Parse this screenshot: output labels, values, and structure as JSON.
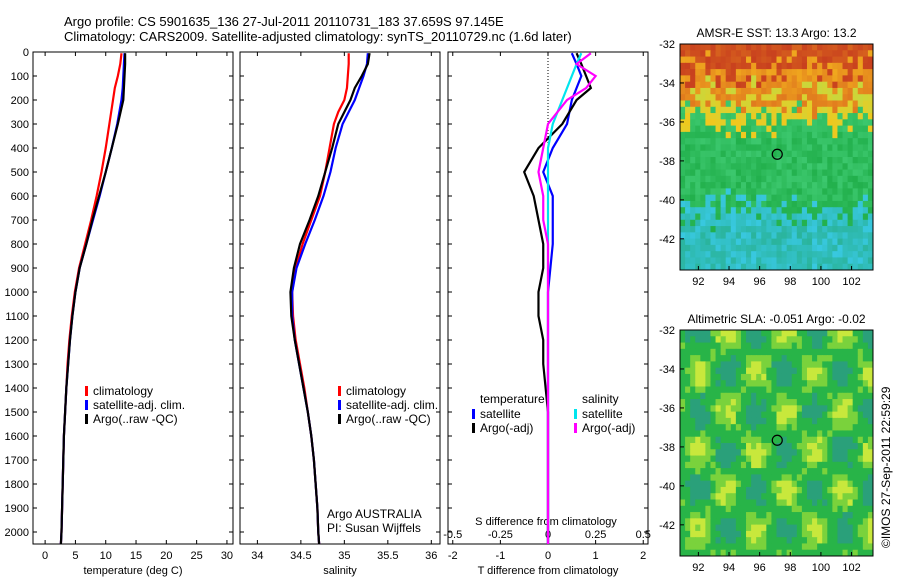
{
  "header": {
    "line1": "Argo profile: CS 5901635_136 27-Jul-2011 20110731_183 37.659S 97.145E",
    "line2": "Climatology: CARS2009. Satellite-adjusted climatology: synTS_20110729.nc (1.6d later)"
  },
  "credit": "Argo AUSTRALIA",
  "pi": "PI: Susan Wijffels",
  "watermark": "©IMOS 27-Sep-2011 22:59:29",
  "colors": {
    "climatology": "#ff0000",
    "satellite": "#0000ff",
    "argo": "#000000",
    "salinity_satellite": "#00e5ee",
    "salinity_argo": "#ff00ff",
    "sst_warm": "#d2691e",
    "sst_cool": "#22b14c"
  },
  "chart_data": [
    {
      "type": "line",
      "id": "temperature",
      "xlabel": "temperature (deg C)",
      "ylabel": "",
      "xlim": [
        -2,
        31
      ],
      "ylim": [
        2050,
        0
      ],
      "xticks": [
        "0",
        "5",
        "10",
        "15",
        "20",
        "25",
        "30"
      ],
      "yticks": [
        "0",
        "100",
        "200",
        "300",
        "400",
        "500",
        "600",
        "700",
        "800",
        "900",
        "1000",
        "1100",
        "1200",
        "1300",
        "1400",
        "1500",
        "1600",
        "1700",
        "1800",
        "1900",
        "2000"
      ],
      "legend": [
        "climatology",
        "satellite-adj. clim.",
        "Argo(..raw -QC)"
      ],
      "series": [
        {
          "name": "climatology",
          "depth": [
            5,
            50,
            100,
            150,
            200,
            300,
            400,
            500,
            600,
            700,
            800,
            900,
            1000,
            1100,
            1200,
            1300,
            1400,
            1500,
            1600,
            1700,
            1800,
            1900,
            2000,
            2050
          ],
          "values": [
            12.6,
            12.4,
            12.0,
            11.5,
            11.2,
            10.6,
            10.0,
            9.3,
            8.5,
            7.6,
            6.6,
            5.6,
            4.9,
            4.4,
            4.0,
            3.7,
            3.5,
            3.3,
            3.1,
            3.0,
            2.9,
            2.8,
            2.7,
            2.6
          ]
        },
        {
          "name": "satellite-adj. clim.",
          "depth": [
            5,
            50,
            100,
            150,
            200,
            300,
            400,
            500,
            600,
            700,
            800,
            900,
            1000,
            1100,
            1200,
            1300,
            1400,
            1500,
            1600,
            1700,
            1800,
            1900,
            2000,
            2050
          ],
          "values": [
            13.1,
            13.0,
            12.9,
            12.8,
            12.6,
            11.9,
            11.0,
            10.0,
            9.0,
            7.9,
            6.8,
            5.7,
            5.0,
            4.5,
            4.1,
            3.8,
            3.5,
            3.3,
            3.1,
            3.0,
            2.9,
            2.8,
            2.7,
            2.6
          ]
        },
        {
          "name": "Argo(..raw -QC)",
          "depth": [
            5,
            50,
            100,
            150,
            200,
            300,
            400,
            500,
            600,
            700,
            800,
            900,
            1000,
            1100,
            1200,
            1300,
            1400,
            1500,
            1600,
            1700,
            1800,
            1900,
            2000,
            2050
          ],
          "values": [
            13.2,
            13.2,
            13.1,
            13.0,
            12.9,
            12.0,
            11.0,
            10.0,
            8.9,
            7.8,
            6.8,
            5.7,
            5.0,
            4.5,
            4.1,
            3.8,
            3.5,
            3.3,
            3.1,
            3.0,
            2.9,
            2.8,
            2.7,
            2.6
          ]
        }
      ]
    },
    {
      "type": "line",
      "id": "salinity",
      "xlabel": "salinity",
      "xlim": [
        33.8,
        36.1
      ],
      "ylim": [
        2050,
        0
      ],
      "xticks": [
        "34",
        "34.5",
        "35",
        "35.5",
        "36"
      ],
      "legend": [
        "climatology",
        "satellite-adj. clim.",
        "Argo(..raw -QC)"
      ],
      "series": [
        {
          "name": "climatology",
          "depth": [
            5,
            50,
            100,
            150,
            200,
            250,
            300,
            400,
            500,
            600,
            700,
            800,
            900,
            1000,
            1100,
            1200,
            1300,
            1400,
            1500,
            1600,
            1700,
            1800,
            1900,
            2000,
            2050
          ],
          "values": [
            35.05,
            35.05,
            35.04,
            35.03,
            35.0,
            34.93,
            34.88,
            34.83,
            34.78,
            34.72,
            34.62,
            34.52,
            34.44,
            34.4,
            34.41,
            34.44,
            34.49,
            34.54,
            34.58,
            34.62,
            34.65,
            34.67,
            34.69,
            34.7,
            34.71
          ]
        },
        {
          "name": "satellite-adj. clim.",
          "depth": [
            5,
            50,
            100,
            150,
            200,
            250,
            300,
            400,
            500,
            600,
            700,
            800,
            900,
            1000,
            1100,
            1200,
            1300,
            1400,
            1500,
            1600,
            1700,
            1800,
            1900,
            2000,
            2050
          ],
          "values": [
            35.27,
            35.26,
            35.22,
            35.17,
            35.12,
            35.05,
            34.98,
            34.9,
            34.84,
            34.76,
            34.66,
            34.55,
            34.45,
            34.4,
            34.4,
            34.43,
            34.48,
            34.53,
            34.58,
            34.62,
            34.65,
            34.67,
            34.69,
            34.7,
            34.71
          ]
        },
        {
          "name": "Argo(..raw -QC)",
          "depth": [
            5,
            50,
            100,
            150,
            200,
            250,
            300,
            400,
            500,
            600,
            700,
            800,
            900,
            1000,
            1100,
            1200,
            1300,
            1400,
            1500,
            1600,
            1700,
            1800,
            1900,
            2000,
            2050
          ],
          "values": [
            35.29,
            35.27,
            35.2,
            35.12,
            35.07,
            35.0,
            34.93,
            34.86,
            34.78,
            34.7,
            34.6,
            34.49,
            34.42,
            34.38,
            34.39,
            34.43,
            34.48,
            34.53,
            34.58,
            34.62,
            34.65,
            34.67,
            34.69,
            34.7,
            34.71
          ]
        }
      ]
    },
    {
      "type": "line",
      "id": "difference",
      "xlabel": "T difference from climatology",
      "xlabel_top": "S difference from climatology",
      "xlim": [
        -2.1,
        2.1
      ],
      "ylim": [
        2050,
        0
      ],
      "xticks": [
        "-2",
        "-1",
        "0",
        "1",
        "2"
      ],
      "xticks_top": [
        "-0.5",
        "-0.25",
        "0",
        "0.25",
        "0.5"
      ],
      "legend_left_title": "temperature",
      "legend_right_title": "salinity",
      "legend": [
        "satellite",
        "Argo(-adj)",
        "satellite",
        "Argo(-adj)"
      ],
      "series": [
        {
          "name": "temperature satellite",
          "depth": [
            5,
            50,
            100,
            150,
            200,
            300,
            400,
            500,
            600,
            800,
            1000,
            1200,
            1500,
            2000,
            2050
          ],
          "values": [
            0.5,
            0.6,
            0.7,
            0.6,
            0.5,
            0.4,
            0.1,
            -0.1,
            0.1,
            0.1,
            0.0,
            0.0,
            0.0,
            0.0,
            0.0
          ]
        },
        {
          "name": "temperature Argo(-adj)",
          "depth": [
            5,
            50,
            100,
            150,
            200,
            300,
            400,
            500,
            600,
            700,
            800,
            900,
            1000,
            1100,
            1200,
            1300,
            1500,
            1800,
            2050
          ],
          "values": [
            0.6,
            0.7,
            0.8,
            0.9,
            0.6,
            0.3,
            -0.2,
            -0.5,
            -0.3,
            -0.2,
            -0.1,
            -0.1,
            -0.2,
            -0.2,
            -0.1,
            -0.1,
            0.0,
            0.0,
            0.0
          ]
        },
        {
          "name": "salinity satellite",
          "depth": [
            5,
            50,
            100,
            150,
            200,
            300,
            400,
            500,
            700,
            900,
            1200,
            1500,
            2050
          ],
          "values": [
            0.7,
            0.6,
            0.5,
            0.4,
            0.3,
            0.1,
            0.0,
            0.0,
            0.0,
            0.0,
            0.0,
            0.0,
            0.0
          ]
        },
        {
          "name": "salinity Argo(-adj)",
          "depth": [
            5,
            50,
            100,
            150,
            200,
            300,
            400,
            500,
            600,
            700,
            800,
            900,
            1000,
            1200,
            1500,
            2050
          ],
          "values": [
            0.9,
            0.6,
            1.0,
            0.8,
            0.4,
            0.0,
            -0.1,
            -0.2,
            -0.1,
            -0.1,
            0.0,
            0.0,
            0.0,
            0.0,
            0.0,
            0.0
          ]
        }
      ]
    },
    {
      "type": "heatmap",
      "id": "sst",
      "title": "AMSR-E SST: 13.3 Argo: 13.2",
      "xticks": [
        "92",
        "94",
        "96",
        "98",
        "100",
        "102"
      ],
      "yticks": [
        "-32",
        "-34",
        "-36",
        "-38",
        "-40",
        "-42"
      ],
      "xlim": [
        90.8,
        103.4
      ],
      "ylim": [
        -43.6,
        -32.0
      ],
      "marker": {
        "lon": 97.15,
        "lat": -37.66
      }
    },
    {
      "type": "heatmap",
      "id": "sla",
      "title": "Altimetric SLA: -0.051 Argo: -0.02",
      "xticks": [
        "92",
        "94",
        "96",
        "98",
        "100",
        "102"
      ],
      "yticks": [
        "-32",
        "-34",
        "-36",
        "-38",
        "-40",
        "-42"
      ],
      "xlim": [
        90.8,
        103.4
      ],
      "ylim": [
        -43.6,
        -32.0
      ],
      "marker": {
        "lon": 97.15,
        "lat": -37.66
      }
    }
  ]
}
